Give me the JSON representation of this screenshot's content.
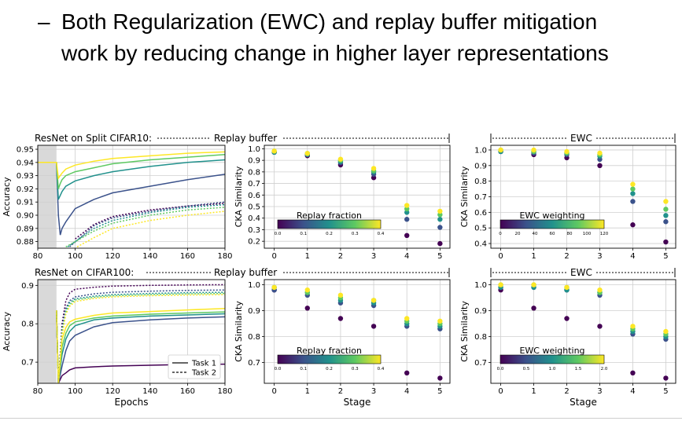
{
  "slide": {
    "bullet_dash": "–",
    "bullet_line1": "Both Regularization (EWC) and replay buffer mitigation",
    "bullet_line2": "work by reducing change in higher layer representations"
  },
  "row_labels": {
    "top": {
      "left": "ResNet on Split CIFAR10:",
      "middle": "Replay buffer",
      "right": "EWC"
    },
    "bottom": {
      "left": "ResNet on CIFAR100:",
      "middle": "Replay buffer",
      "right": "EWC"
    }
  },
  "colors": {
    "viridis": [
      "#440154",
      "#3b528b",
      "#21918c",
      "#5ec962",
      "#fde725"
    ],
    "shade": "#d9d9d9",
    "grid": "#cfcfcf"
  },
  "chart_data": [
    {
      "id": "top-accuracy",
      "type": "line",
      "xlabel": "",
      "ylabel": "Accuracy",
      "xlim": [
        80,
        180
      ],
      "ylim": [
        0.875,
        0.953
      ],
      "xticks": [
        80,
        100,
        120,
        140,
        160,
        180
      ],
      "yticks": [
        "0.88",
        "0.89",
        "0.90",
        "0.91",
        "0.92",
        "0.93",
        "0.94",
        "0.95"
      ],
      "shaded_x": [
        80,
        90
      ],
      "grid": true,
      "legend": null,
      "series": [
        {
          "color": "#3b528b",
          "dashed": false,
          "x": [
            80,
            90,
            91,
            92,
            93,
            95,
            100,
            110,
            120,
            140,
            160,
            180
          ],
          "y": [
            0.94,
            0.94,
            0.9,
            0.885,
            0.89,
            0.895,
            0.905,
            0.912,
            0.917,
            0.922,
            0.927,
            0.931
          ]
        },
        {
          "color": "#21918c",
          "dashed": false,
          "x": [
            80,
            90,
            91,
            92,
            93,
            95,
            100,
            110,
            120,
            140,
            160,
            180
          ],
          "y": [
            0.94,
            0.94,
            0.912,
            0.915,
            0.918,
            0.922,
            0.926,
            0.93,
            0.933,
            0.937,
            0.94,
            0.942
          ]
        },
        {
          "color": "#5ec962",
          "dashed": false,
          "x": [
            80,
            90,
            91,
            92,
            93,
            95,
            100,
            110,
            120,
            140,
            160,
            180
          ],
          "y": [
            0.94,
            0.94,
            0.92,
            0.924,
            0.927,
            0.93,
            0.933,
            0.936,
            0.939,
            0.942,
            0.944,
            0.946
          ]
        },
        {
          "color": "#fde725",
          "dashed": false,
          "x": [
            80,
            90,
            91,
            92,
            93,
            95,
            100,
            110,
            120,
            140,
            160,
            180
          ],
          "y": [
            0.94,
            0.94,
            0.928,
            0.93,
            0.932,
            0.935,
            0.938,
            0.941,
            0.943,
            0.945,
            0.947,
            0.948
          ]
        },
        {
          "color": "#440154",
          "dashed": true,
          "x": [
            100,
            110,
            120,
            140,
            160,
            180
          ],
          "y": [
            0.882,
            0.893,
            0.899,
            0.904,
            0.907,
            0.909
          ]
        },
        {
          "color": "#3b528b",
          "dashed": true,
          "x": [
            97,
            110,
            120,
            140,
            160,
            180
          ],
          "y": [
            0.876,
            0.892,
            0.898,
            0.903,
            0.907,
            0.91
          ]
        },
        {
          "color": "#21918c",
          "dashed": true,
          "x": [
            96,
            110,
            120,
            140,
            160,
            180
          ],
          "y": [
            0.876,
            0.89,
            0.896,
            0.902,
            0.906,
            0.908
          ]
        },
        {
          "color": "#5ec962",
          "dashed": true,
          "x": [
            95,
            110,
            120,
            140,
            160,
            180
          ],
          "y": [
            0.876,
            0.888,
            0.894,
            0.9,
            0.904,
            0.906
          ]
        },
        {
          "color": "#fde725",
          "dashed": true,
          "x": [
            101,
            110,
            120,
            140,
            160,
            180
          ],
          "y": [
            0.876,
            0.883,
            0.89,
            0.896,
            0.9,
            0.903
          ]
        }
      ]
    },
    {
      "id": "top-replay",
      "type": "scatter",
      "xlabel": "",
      "ylabel": "CKA Similarity",
      "xlim": [
        -0.3,
        5.3
      ],
      "ylim": [
        0.14,
        1.03
      ],
      "xticks": [
        0,
        1,
        2,
        3,
        4,
        5
      ],
      "yticks": [
        "0.2",
        "0.3",
        "0.4",
        "0.5",
        "0.6",
        "0.7",
        "0.8",
        "0.9",
        "1.0"
      ],
      "grid": true,
      "colorbar": {
        "label": "Replay fraction",
        "ticks": [
          "0.0",
          "0.1",
          "0.2",
          "0.3",
          "0.4"
        ]
      },
      "series": [
        {
          "color": "#440154",
          "x": [
            0,
            1,
            2,
            3,
            4,
            5
          ],
          "y": [
            0.97,
            0.94,
            0.86,
            0.75,
            0.25,
            0.18
          ]
        },
        {
          "color": "#3b528b",
          "x": [
            0,
            1,
            2,
            3,
            4,
            5
          ],
          "y": [
            0.97,
            0.95,
            0.88,
            0.78,
            0.39,
            0.32
          ]
        },
        {
          "color": "#21918c",
          "x": [
            0,
            1,
            2,
            3,
            4,
            5
          ],
          "y": [
            0.97,
            0.95,
            0.89,
            0.8,
            0.45,
            0.39
          ]
        },
        {
          "color": "#5ec962",
          "x": [
            0,
            1,
            2,
            3,
            4,
            5
          ],
          "y": [
            0.98,
            0.96,
            0.9,
            0.81,
            0.48,
            0.43
          ]
        },
        {
          "color": "#fde725",
          "x": [
            0,
            1,
            2,
            3,
            4,
            5
          ],
          "y": [
            0.98,
            0.96,
            0.91,
            0.83,
            0.51,
            0.46
          ]
        }
      ]
    },
    {
      "id": "top-ewc",
      "type": "scatter",
      "xlabel": "",
      "ylabel": "CKA Similarity",
      "xlim": [
        -0.3,
        5.3
      ],
      "ylim": [
        0.37,
        1.03
      ],
      "xticks": [
        0,
        1,
        2,
        3,
        4,
        5
      ],
      "yticks": [
        "0.4",
        "0.5",
        "0.6",
        "0.7",
        "0.8",
        "0.9",
        "1.0"
      ],
      "grid": true,
      "colorbar": {
        "label": "EWC weighting",
        "ticks": [
          "0",
          "20",
          "40",
          "60",
          "80",
          "100",
          "120"
        ]
      },
      "series": [
        {
          "color": "#440154",
          "x": [
            0,
            1,
            2,
            3,
            4,
            5
          ],
          "y": [
            0.99,
            0.97,
            0.95,
            0.9,
            0.52,
            0.41
          ]
        },
        {
          "color": "#3b528b",
          "x": [
            0,
            1,
            2,
            3,
            4,
            5
          ],
          "y": [
            0.99,
            0.98,
            0.97,
            0.94,
            0.67,
            0.54
          ]
        },
        {
          "color": "#21918c",
          "x": [
            0,
            1,
            2,
            3,
            4,
            5
          ],
          "y": [
            0.99,
            0.99,
            0.98,
            0.96,
            0.72,
            0.58
          ]
        },
        {
          "color": "#5ec962",
          "x": [
            0,
            1,
            2,
            3,
            4,
            5
          ],
          "y": [
            1.0,
            0.99,
            0.98,
            0.97,
            0.75,
            0.62
          ]
        },
        {
          "color": "#fde725",
          "x": [
            0,
            1,
            2,
            3,
            4,
            5
          ],
          "y": [
            1.0,
            1.0,
            0.99,
            0.98,
            0.78,
            0.67
          ]
        }
      ]
    },
    {
      "id": "bottom-accuracy",
      "type": "line",
      "xlabel": "Epochs",
      "ylabel": "Accuracy",
      "xlim": [
        80,
        180
      ],
      "ylim": [
        0.645,
        0.915
      ],
      "xticks": [
        80,
        100,
        120,
        140,
        160,
        180
      ],
      "yticks": [
        "0.7",
        "0.8",
        "0.9"
      ],
      "shaded_x": [
        80,
        90
      ],
      "grid": true,
      "legend": {
        "position": "bottom-right",
        "entries": [
          {
            "label": "Task 1",
            "dashed": false
          },
          {
            "label": "Task 2",
            "dashed": true
          }
        ]
      },
      "series": [
        {
          "color": "#440154",
          "dashed": false,
          "x": [
            90,
            91,
            93,
            95,
            97,
            100,
            110,
            120,
            140,
            160,
            180
          ],
          "y": [
            0.835,
            0.645,
            0.665,
            0.672,
            0.68,
            0.685,
            0.688,
            0.69,
            0.692,
            0.694,
            0.695
          ]
        },
        {
          "color": "#3b528b",
          "dashed": false,
          "x": [
            90,
            91,
            93,
            95,
            97,
            100,
            110,
            120,
            140,
            160,
            180
          ],
          "y": [
            0.835,
            0.645,
            0.69,
            0.73,
            0.755,
            0.77,
            0.792,
            0.803,
            0.81,
            0.815,
            0.818
          ]
        },
        {
          "color": "#21918c",
          "dashed": false,
          "x": [
            90,
            91,
            93,
            95,
            97,
            100,
            110,
            120,
            140,
            160,
            180
          ],
          "y": [
            0.835,
            0.645,
            0.72,
            0.76,
            0.78,
            0.795,
            0.81,
            0.815,
            0.82,
            0.823,
            0.826
          ]
        },
        {
          "color": "#5ec962",
          "dashed": false,
          "x": [
            90,
            91,
            93,
            95,
            97,
            100,
            110,
            120,
            140,
            160,
            180
          ],
          "y": [
            0.835,
            0.645,
            0.74,
            0.775,
            0.795,
            0.805,
            0.815,
            0.82,
            0.825,
            0.828,
            0.831
          ]
        },
        {
          "color": "#fde725",
          "dashed": false,
          "x": [
            90,
            91,
            93,
            95,
            97,
            100,
            110,
            120,
            140,
            160,
            180
          ],
          "y": [
            0.835,
            0.645,
            0.76,
            0.79,
            0.805,
            0.812,
            0.822,
            0.828,
            0.832,
            0.836,
            0.84
          ]
        },
        {
          "color": "#440154",
          "dashed": true,
          "x": [
            90,
            91,
            93,
            95,
            97,
            100,
            110,
            120,
            140,
            160,
            180
          ],
          "y": [
            0.835,
            0.645,
            0.8,
            0.86,
            0.88,
            0.89,
            0.895,
            0.898,
            0.9,
            0.901,
            0.902
          ]
        },
        {
          "color": "#3b528b",
          "dashed": true,
          "x": [
            90,
            91,
            93,
            95,
            97,
            100,
            110,
            120,
            140,
            160,
            180
          ],
          "y": [
            0.835,
            0.645,
            0.79,
            0.84,
            0.86,
            0.87,
            0.878,
            0.882,
            0.885,
            0.887,
            0.888
          ]
        },
        {
          "color": "#21918c",
          "dashed": true,
          "x": [
            90,
            91,
            93,
            95,
            97,
            100,
            110,
            120,
            140,
            160,
            180
          ],
          "y": [
            0.835,
            0.645,
            0.78,
            0.835,
            0.855,
            0.865,
            0.872,
            0.876,
            0.879,
            0.881,
            0.882
          ]
        },
        {
          "color": "#5ec962",
          "dashed": true,
          "x": [
            90,
            91,
            93,
            95,
            97,
            100,
            110,
            120,
            140,
            160,
            180
          ],
          "y": [
            0.835,
            0.645,
            0.775,
            0.83,
            0.85,
            0.862,
            0.869,
            0.873,
            0.876,
            0.878,
            0.879
          ]
        },
        {
          "color": "#fde725",
          "dashed": true,
          "x": [
            90,
            91,
            93,
            95,
            97,
            100,
            110,
            120,
            140,
            160,
            180
          ],
          "y": [
            0.835,
            0.645,
            0.77,
            0.825,
            0.845,
            0.858,
            0.866,
            0.87,
            0.873,
            0.875,
            0.876
          ]
        }
      ]
    },
    {
      "id": "bottom-replay",
      "type": "scatter",
      "xlabel": "Stage",
      "ylabel": "CKA Similarity",
      "xlim": [
        -0.3,
        5.3
      ],
      "ylim": [
        0.62,
        1.02
      ],
      "xticks": [
        0,
        1,
        2,
        3,
        4,
        5
      ],
      "yticks": [
        "0.7",
        "0.8",
        "0.9",
        "1.0"
      ],
      "grid": true,
      "colorbar": {
        "label": "Replay fraction",
        "ticks": [
          "0.0",
          "0.1",
          "0.2",
          "0.3",
          "0.4"
        ]
      },
      "series": [
        {
          "color": "#440154",
          "x": [
            0,
            1,
            2,
            3,
            4,
            5
          ],
          "y": [
            0.98,
            0.91,
            0.87,
            0.84,
            0.66,
            0.64
          ]
        },
        {
          "color": "#3b528b",
          "x": [
            0,
            1,
            2,
            3,
            4,
            5
          ],
          "y": [
            0.98,
            0.96,
            0.93,
            0.92,
            0.84,
            0.83
          ]
        },
        {
          "color": "#21918c",
          "x": [
            0,
            1,
            2,
            3,
            4,
            5
          ],
          "y": [
            0.99,
            0.97,
            0.94,
            0.93,
            0.85,
            0.84
          ]
        },
        {
          "color": "#5ec962",
          "x": [
            0,
            1,
            2,
            3,
            4,
            5
          ],
          "y": [
            0.99,
            0.97,
            0.95,
            0.94,
            0.86,
            0.85
          ]
        },
        {
          "color": "#fde725",
          "x": [
            0,
            1,
            2,
            3,
            4,
            5
          ],
          "y": [
            0.99,
            0.98,
            0.96,
            0.94,
            0.87,
            0.86
          ]
        }
      ]
    },
    {
      "id": "bottom-ewc",
      "type": "scatter",
      "xlabel": "Stage",
      "ylabel": "CKA Similarity",
      "xlim": [
        -0.3,
        5.3
      ],
      "ylim": [
        0.62,
        1.02
      ],
      "xticks": [
        0,
        1,
        2,
        3,
        4,
        5
      ],
      "yticks": [
        "0.7",
        "0.8",
        "0.9",
        "1.0"
      ],
      "grid": true,
      "colorbar": {
        "label": "EWC weighting",
        "ticks": [
          "0.0",
          "0.5",
          "1.0",
          "1.5",
          "2.0"
        ]
      },
      "series": [
        {
          "color": "#440154",
          "x": [
            0,
            1,
            2,
            3,
            4,
            5
          ],
          "y": [
            0.98,
            0.91,
            0.87,
            0.84,
            0.66,
            0.64
          ]
        },
        {
          "color": "#3b528b",
          "x": [
            0,
            1,
            2,
            3,
            4,
            5
          ],
          "y": [
            0.99,
            0.99,
            0.98,
            0.96,
            0.81,
            0.79
          ]
        },
        {
          "color": "#21918c",
          "x": [
            0,
            1,
            2,
            3,
            4,
            5
          ],
          "y": [
            0.99,
            0.99,
            0.98,
            0.97,
            0.82,
            0.8
          ]
        },
        {
          "color": "#5ec962",
          "x": [
            0,
            1,
            2,
            3,
            4,
            5
          ],
          "y": [
            1.0,
            1.0,
            0.99,
            0.97,
            0.83,
            0.81
          ]
        },
        {
          "color": "#fde725",
          "x": [
            0,
            1,
            2,
            3,
            4,
            5
          ],
          "y": [
            1.0,
            1.0,
            0.99,
            0.98,
            0.84,
            0.82
          ]
        }
      ]
    }
  ]
}
